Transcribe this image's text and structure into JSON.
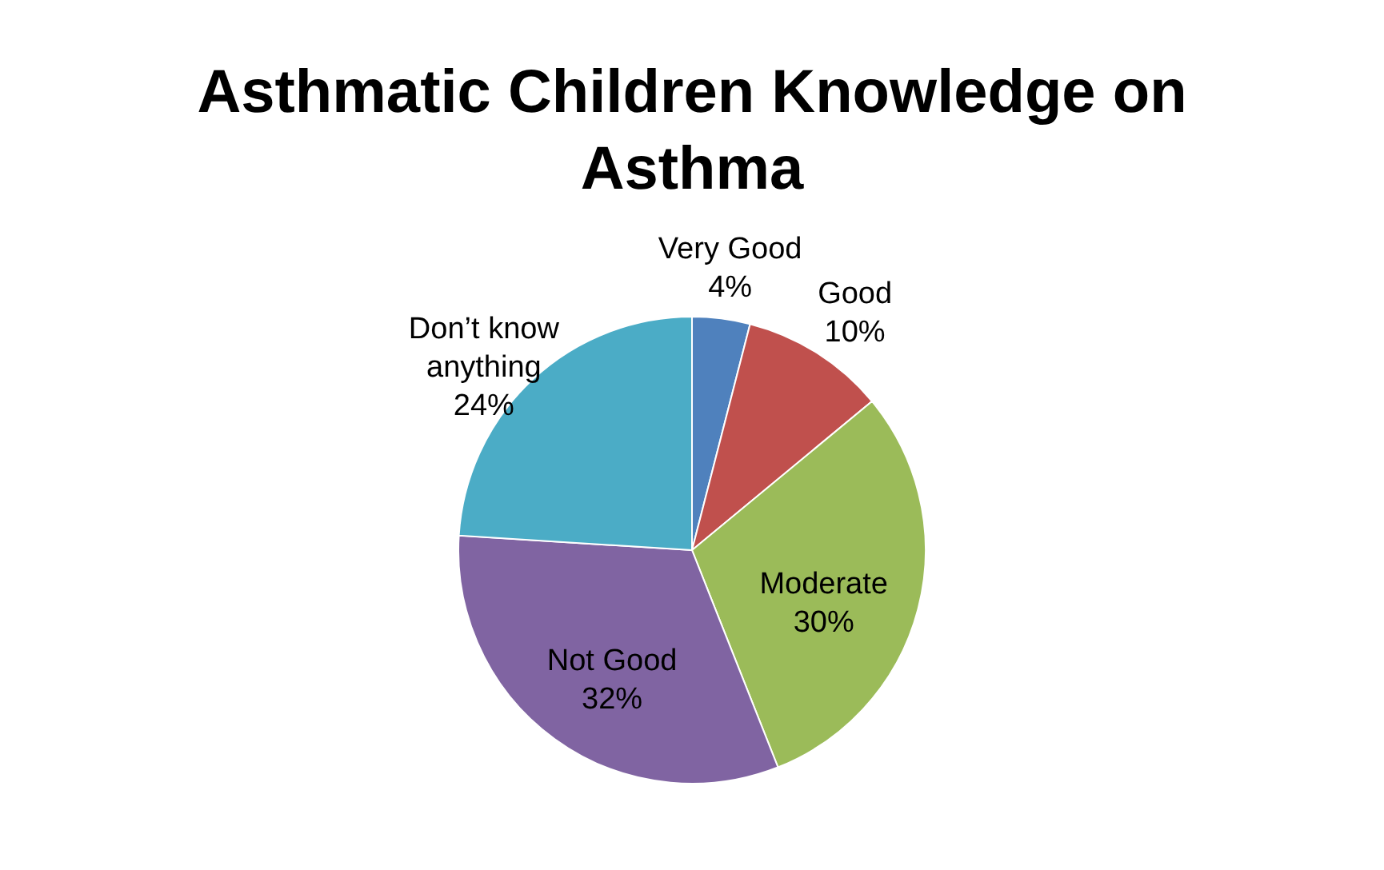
{
  "chart_data": {
    "type": "pie",
    "title": "Asthmatic Children Knowledge on Asthma",
    "categories": [
      "Very Good",
      "Good",
      "Moderate",
      "Not Good",
      "Don’t know anything"
    ],
    "values": [
      4,
      10,
      30,
      32,
      24
    ],
    "value_labels": [
      "4%",
      "10%",
      "30%",
      "32%",
      "24%"
    ],
    "colors": [
      "#4f81bd",
      "#c0504d",
      "#9bbb59",
      "#8064a2",
      "#4bacc6"
    ],
    "legend": false
  }
}
